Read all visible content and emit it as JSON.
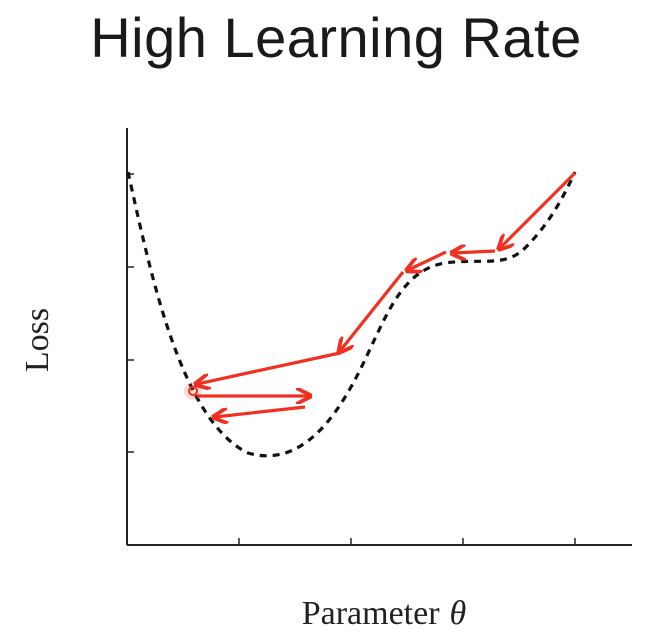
{
  "title": "High Learning Rate",
  "axes": {
    "ylabel": "Loss",
    "xlabel_prefix": "Parameter",
    "xlabel_symbol": "θ"
  },
  "colors": {
    "curve": "#111111",
    "arrow": "#f03020",
    "axis": "#222222"
  }
}
